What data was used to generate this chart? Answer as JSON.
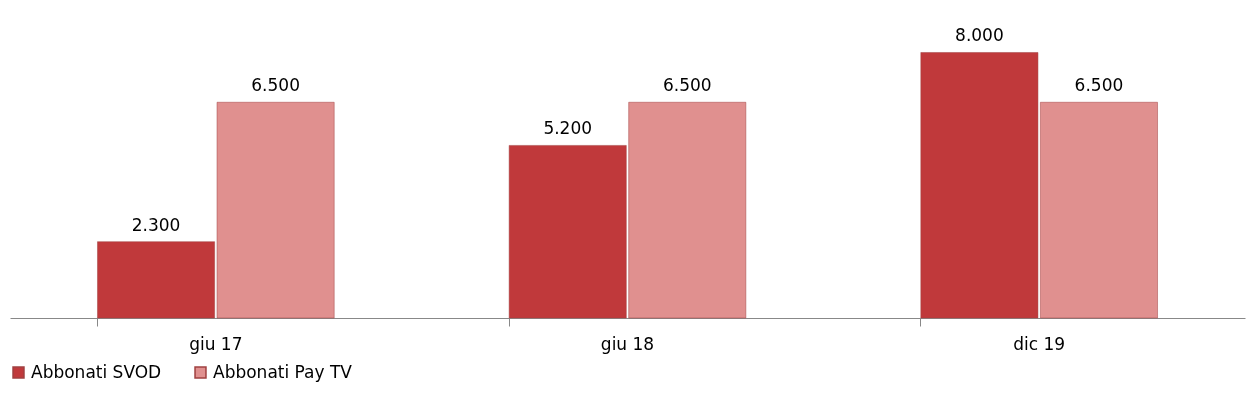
{
  "chart_data": {
    "type": "bar",
    "categories": [
      "giu 17",
      "giu 18",
      "dic 19"
    ],
    "series": [
      {
        "name": "Abbonati SVOD",
        "color": "#c0393b",
        "values": [
          2300,
          5200,
          8000
        ],
        "value_labels": [
          "2.300",
          "5.200",
          "8.000"
        ]
      },
      {
        "name": "Abbonati Pay TV",
        "color": "#e0908f",
        "values": [
          6500,
          6500,
          6500
        ],
        "value_labels": [
          "6.500",
          "6.500",
          "6.500"
        ]
      }
    ],
    "legend": "bottom",
    "grid": false
  }
}
